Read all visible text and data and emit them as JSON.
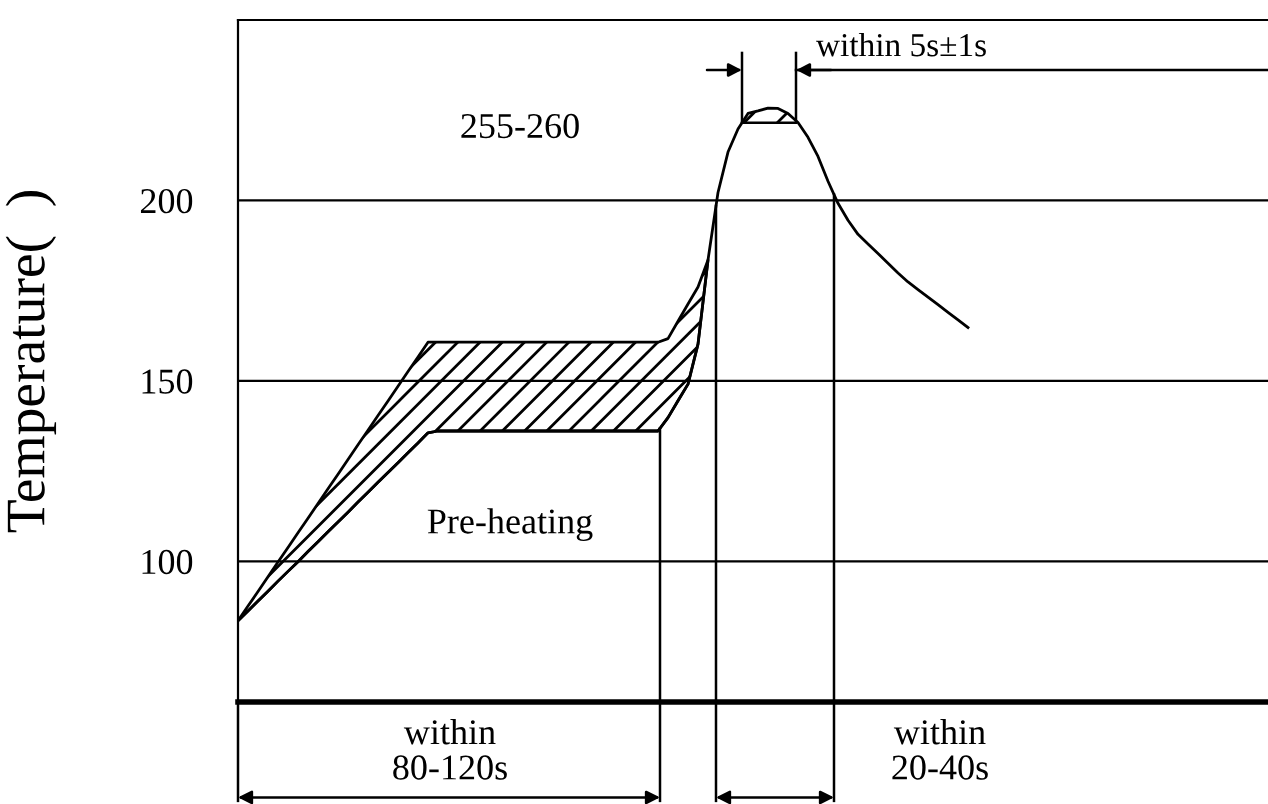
{
  "chart_data": {
    "type": "line",
    "ylabel": "Temperature(  )",
    "categories": [
      null,
      null,
      null,
      null,
      null,
      null,
      null,
      null,
      null,
      null,
      null,
      null,
      null,
      null,
      null,
      null,
      null,
      null,
      null,
      null,
      null,
      null,
      null,
      null,
      null,
      null,
      null,
      null,
      null,
      null,
      null,
      null,
      null,
      null,
      null,
      null,
      null,
      null,
      null,
      null,
      null,
      null,
      null,
      null,
      null,
      null,
      null,
      null,
      null,
      null,
      null,
      null,
      null,
      null,
      null,
      null,
      null,
      null,
      null,
      null,
      null,
      null,
      null,
      null,
      null,
      null,
      null,
      null,
      null,
      null,
      null,
      null,
      null,
      null,
      null,
      null,
      null,
      null,
      null,
      null,
      null,
      null,
      null,
      null,
      null,
      null,
      null,
      null,
      null,
      null,
      null,
      null,
      null,
      null,
      null,
      null,
      null,
      null,
      null,
      null,
      null,
      null,
      null,
      null
    ],
    "series": [
      {
        "color": "#000000",
        "values": [
          83.5,
          86.2,
          89.0,
          91.7,
          94.5,
          97.2,
          99.9,
          102.7,
          105.4,
          108.2,
          110.9,
          113.6,
          116.4,
          119.1,
          121.9,
          124.6,
          127.3,
          130.1,
          132.8,
          135.6,
          136.1,
          136.1,
          136.1,
          136.1,
          136.1,
          136.1,
          136.1,
          136.1,
          136.1,
          136.1,
          136.1,
          136.1,
          136.1,
          136.1,
          136.1,
          136.1,
          136.1,
          136.1,
          136.1,
          136.1,
          136.1,
          136.1,
          136.1,
          139.8,
          144.5,
          149.1,
          160.2,
          183.5,
          202.2,
          213.4,
          219.8,
          224.1,
          224.8,
          225.6,
          225.5,
          224.1,
          221.6,
          217.5,
          212.2,
          205.3,
          199.2,
          194.5,
          190.6,
          187.9,
          185.3,
          182.6,
          179.9,
          177.4,
          175.3,
          173.2,
          171.1,
          169.0,
          166.9,
          164.8,
          null,
          null,
          null,
          null,
          null,
          null,
          null,
          null,
          null,
          null,
          null,
          null,
          null,
          null,
          null,
          null,
          null,
          null,
          null,
          null,
          null,
          null,
          null,
          null,
          null,
          null,
          null,
          null,
          null,
          null
        ],
        "lower": [
          83.5,
          86.2,
          89.0,
          91.7,
          94.5,
          97.2,
          99.9,
          102.7,
          105.4,
          108.2,
          110.9,
          113.6,
          116.4,
          119.1,
          121.9,
          124.6,
          127.3,
          130.1,
          132.8,
          135.6,
          136.1,
          136.1,
          136.1,
          136.1,
          136.1,
          136.1,
          136.1,
          136.1,
          136.1,
          136.1,
          136.1,
          136.1,
          136.1,
          136.1,
          136.1,
          136.1,
          136.1,
          136.1,
          136.1,
          136.1,
          136.1,
          136.1,
          136.1,
          139.8,
          144.5,
          149.1,
          160.2,
          183.5,
          null,
          null,
          null,
          null,
          null,
          null,
          null,
          null,
          null,
          null,
          null,
          null,
          null,
          null,
          null,
          null,
          null,
          null,
          null,
          null,
          null,
          null,
          null,
          null,
          null,
          null,
          null,
          null,
          null,
          null,
          null,
          null,
          null,
          null,
          null,
          null,
          null,
          null,
          null,
          null,
          null,
          null,
          null,
          null,
          null,
          null,
          null,
          null,
          null,
          null,
          null,
          null,
          null,
          null,
          null,
          null
        ],
        "upper": [
          83.5,
          87.6,
          91.6,
          95.7,
          99.8,
          103.8,
          107.9,
          111.9,
          116.0,
          120.1,
          124.1,
          128.2,
          132.3,
          136.3,
          140.4,
          144.4,
          148.5,
          152.6,
          156.6,
          160.7,
          160.7,
          160.7,
          160.7,
          160.7,
          160.7,
          160.7,
          160.7,
          160.7,
          160.7,
          160.7,
          160.7,
          160.7,
          160.7,
          160.7,
          160.7,
          160.7,
          160.7,
          160.7,
          160.7,
          160.7,
          160.7,
          160.7,
          160.7,
          161.7,
          166.5,
          171.3,
          176.0,
          183.5,
          null,
          null,
          null,
          null,
          null,
          null,
          null,
          null,
          null,
          null,
          null,
          null,
          null,
          null,
          null,
          null,
          null,
          null,
          null,
          null,
          null,
          null,
          null,
          null,
          null,
          null,
          null,
          null,
          null,
          null,
          null,
          null,
          null,
          null,
          null,
          null,
          null,
          null,
          null,
          null,
          null,
          null,
          null,
          null,
          null,
          null,
          null,
          null,
          null,
          null,
          null,
          null,
          null,
          null,
          null,
          null
        ]
      }
    ],
    "ylim": [
      61,
      250
    ],
    "yticks": [
      100,
      150,
      200
    ],
    "grid": "y",
    "annotations": [
      "255-260",
      "Pre-heating",
      "within\n80-120s",
      "within\n20-40s",
      "within 5s±1s"
    ]
  }
}
